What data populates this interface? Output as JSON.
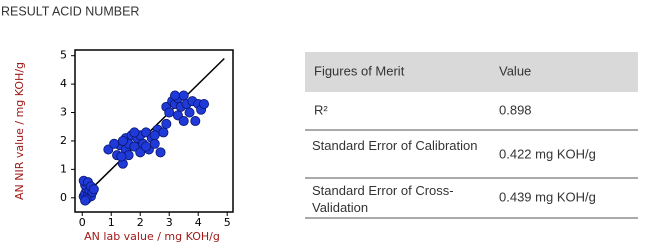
{
  "page_title": "RESULT ACID NUMBER",
  "chart_data": {
    "type": "scatter",
    "xlabel": "AN lab value / mg KOH/g",
    "ylabel": "AN NIR value / mg KOH/g",
    "xlim": [
      -0.25,
      5.2
    ],
    "ylim": [
      -0.5,
      5.2
    ],
    "xticks": [
      0,
      1,
      2,
      3,
      4,
      5
    ],
    "yticks": [
      0,
      1,
      2,
      3,
      4,
      5
    ],
    "reference_line": {
      "x": [
        0,
        4.9
      ],
      "y": [
        0,
        4.9
      ],
      "color": "#000000"
    },
    "series": [
      {
        "color": "#1f3ad8",
        "x": [
          0.05,
          0.1,
          0.15,
          0.1,
          0.2,
          0.25,
          0.3,
          0.05,
          0.2,
          0.35,
          0.15,
          0.3,
          0.4,
          0.1,
          0.9,
          1.2,
          1.3,
          1.4,
          1.5,
          1.5,
          1.6,
          1.7,
          1.8,
          1.9,
          2.0,
          2.0,
          2.1,
          2.2,
          2.3,
          2.4,
          2.5,
          2.6,
          2.7,
          2.8,
          1.4,
          1.6,
          2.2,
          1.8,
          2.5,
          1.1,
          2.9,
          1.35,
          2.9,
          3.0,
          3.1,
          3.2,
          3.3,
          3.3,
          3.4,
          3.5,
          3.6,
          3.7,
          3.8,
          3.9,
          4.0,
          4.1,
          4.2,
          3.2,
          3.5
        ],
        "y": [
          0.05,
          0.15,
          0.3,
          0.45,
          0.1,
          0.25,
          0.05,
          0.6,
          0.55,
          0.2,
          -0.05,
          0.4,
          0.3,
          -0.1,
          1.7,
          1.5,
          1.85,
          1.2,
          1.7,
          2.1,
          1.9,
          2.2,
          1.8,
          2.1,
          1.6,
          2.2,
          1.9,
          2.3,
          1.7,
          2.1,
          1.9,
          2.4,
          1.6,
          2.3,
          2.0,
          1.5,
          1.8,
          2.3,
          2.2,
          1.9,
          2.6,
          1.45,
          3.2,
          3.0,
          3.4,
          3.3,
          3.5,
          2.9,
          3.2,
          3.6,
          3.3,
          3.0,
          3.4,
          2.7,
          3.3,
          3.1,
          3.3,
          3.6,
          2.7
        ]
      }
    ]
  },
  "table": {
    "header": [
      "Figures of Merit",
      "Value"
    ],
    "rows": [
      [
        "R²",
        "0.898"
      ],
      [
        "Standard Error of Calibration",
        "0.422 mg KOH/g"
      ],
      [
        "Standard Error of Cross-Validation",
        "0.439 mg KOH/g"
      ]
    ]
  }
}
